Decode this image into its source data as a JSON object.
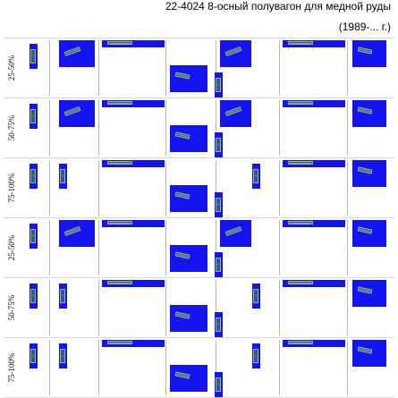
{
  "header": {
    "title": "22-4024 8-осный полувагон для медной руды",
    "subtitle": "(1989-... г.)"
  },
  "rows": [
    {
      "label": "25-50%"
    },
    {
      "label": "50-75%"
    },
    {
      "label": "75-100%"
    },
    {
      "label": "25-50%"
    },
    {
      "label": "50-75%"
    },
    {
      "label": "75-100%"
    }
  ],
  "tile_icon": "freight-wagon-sprite",
  "colors": {
    "tile_background": "#1414f0",
    "wagon_body": "#2f5f6f"
  }
}
